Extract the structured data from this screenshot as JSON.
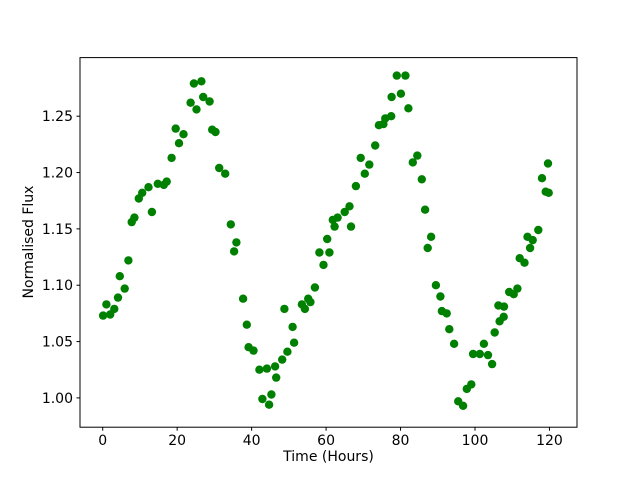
{
  "chart_data": {
    "type": "scatter",
    "title": "",
    "xlabel": "Time (Hours)",
    "ylabel": "Normalised Flux",
    "legend": "none",
    "grid": false,
    "marker": {
      "shape": "circle",
      "color": "#008000",
      "radius_px": 4.2
    },
    "xlim": [
      -6.1,
      127.4
    ],
    "ylim": [
      0.974,
      1.302
    ],
    "x_ticks": {
      "values": [
        0,
        20,
        40,
        60,
        80,
        100,
        120
      ],
      "labels": [
        "0",
        "20",
        "40",
        "60",
        "80",
        "100",
        "120"
      ]
    },
    "y_ticks": {
      "values": [
        1.0,
        1.05,
        1.1,
        1.15,
        1.2,
        1.25
      ],
      "labels": [
        "1.00",
        "1.05",
        "1.10",
        "1.15",
        "1.20",
        "1.25"
      ]
    },
    "points": [
      [
        0.1,
        1.073
      ],
      [
        1.0,
        1.083
      ],
      [
        2.0,
        1.074
      ],
      [
        3.1,
        1.079
      ],
      [
        4.1,
        1.089
      ],
      [
        4.6,
        1.108
      ],
      [
        5.9,
        1.097
      ],
      [
        6.9,
        1.122
      ],
      [
        7.8,
        1.156
      ],
      [
        8.5,
        1.16
      ],
      [
        9.7,
        1.177
      ],
      [
        10.6,
        1.182
      ],
      [
        12.3,
        1.187
      ],
      [
        13.2,
        1.165
      ],
      [
        14.8,
        1.19
      ],
      [
        16.4,
        1.189
      ],
      [
        17.2,
        1.192
      ],
      [
        18.5,
        1.213
      ],
      [
        19.6,
        1.239
      ],
      [
        20.5,
        1.226
      ],
      [
        21.7,
        1.234
      ],
      [
        23.6,
        1.262
      ],
      [
        24.5,
        1.279
      ],
      [
        25.2,
        1.256
      ],
      [
        26.5,
        1.281
      ],
      [
        27.0,
        1.267
      ],
      [
        28.7,
        1.263
      ],
      [
        29.4,
        1.238
      ],
      [
        30.3,
        1.236
      ],
      [
        31.3,
        1.204
      ],
      [
        32.9,
        1.199
      ],
      [
        34.4,
        1.154
      ],
      [
        35.3,
        1.13
      ],
      [
        35.9,
        1.138
      ],
      [
        37.7,
        1.088
      ],
      [
        38.7,
        1.065
      ],
      [
        39.2,
        1.045
      ],
      [
        40.5,
        1.042
      ],
      [
        42.1,
        1.025
      ],
      [
        42.9,
        0.999
      ],
      [
        44.1,
        1.026
      ],
      [
        44.7,
        0.994
      ],
      [
        45.3,
        1.003
      ],
      [
        46.3,
        1.028
      ],
      [
        46.6,
        1.018
      ],
      [
        48.2,
        1.034
      ],
      [
        48.8,
        1.079
      ],
      [
        49.6,
        1.041
      ],
      [
        51.0,
        1.063
      ],
      [
        51.4,
        1.049
      ],
      [
        53.5,
        1.083
      ],
      [
        54.3,
        1.079
      ],
      [
        55.2,
        1.088
      ],
      [
        55.8,
        1.085
      ],
      [
        57.0,
        1.098
      ],
      [
        58.2,
        1.129
      ],
      [
        59.3,
        1.118
      ],
      [
        60.3,
        1.141
      ],
      [
        60.9,
        1.129
      ],
      [
        61.8,
        1.158
      ],
      [
        62.3,
        1.152
      ],
      [
        63.1,
        1.16
      ],
      [
        65.0,
        1.165
      ],
      [
        66.3,
        1.17
      ],
      [
        66.7,
        1.152
      ],
      [
        68.0,
        1.188
      ],
      [
        69.3,
        1.213
      ],
      [
        70.4,
        1.199
      ],
      [
        71.6,
        1.207
      ],
      [
        73.2,
        1.224
      ],
      [
        74.2,
        1.242
      ],
      [
        75.4,
        1.243
      ],
      [
        75.9,
        1.248
      ],
      [
        77.5,
        1.25
      ],
      [
        77.6,
        1.267
      ],
      [
        79.0,
        1.286
      ],
      [
        80.1,
        1.27
      ],
      [
        81.3,
        1.286
      ],
      [
        82.1,
        1.257
      ],
      [
        83.3,
        1.209
      ],
      [
        84.5,
        1.215
      ],
      [
        85.7,
        1.194
      ],
      [
        86.6,
        1.167
      ],
      [
        87.3,
        1.133
      ],
      [
        88.2,
        1.143
      ],
      [
        89.5,
        1.1
      ],
      [
        90.7,
        1.09
      ],
      [
        91.1,
        1.077
      ],
      [
        92.4,
        1.075
      ],
      [
        93.1,
        1.061
      ],
      [
        94.4,
        1.048
      ],
      [
        95.5,
        0.997
      ],
      [
        96.8,
        0.993
      ],
      [
        97.8,
        1.008
      ],
      [
        99.0,
        1.012
      ],
      [
        99.5,
        1.039
      ],
      [
        101.3,
        1.039
      ],
      [
        102.4,
        1.048
      ],
      [
        103.5,
        1.038
      ],
      [
        104.6,
        1.03
      ],
      [
        105.3,
        1.058
      ],
      [
        106.3,
        1.082
      ],
      [
        106.6,
        1.068
      ],
      [
        107.7,
        1.072
      ],
      [
        107.8,
        1.081
      ],
      [
        109.2,
        1.094
      ],
      [
        110.4,
        1.092
      ],
      [
        111.4,
        1.097
      ],
      [
        112.0,
        1.124
      ],
      [
        113.3,
        1.12
      ],
      [
        114.1,
        1.143
      ],
      [
        114.8,
        1.133
      ],
      [
        115.5,
        1.14
      ],
      [
        117.0,
        1.149
      ],
      [
        118.0,
        1.195
      ],
      [
        119.0,
        1.183
      ],
      [
        119.6,
        1.208
      ],
      [
        119.8,
        1.182
      ]
    ]
  }
}
